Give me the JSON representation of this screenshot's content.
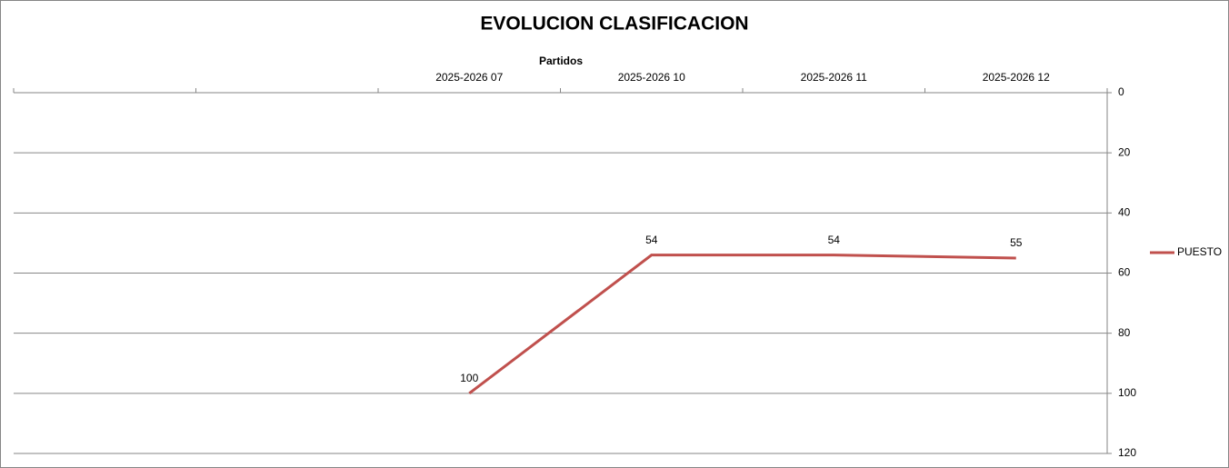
{
  "chart_data": {
    "type": "line",
    "title": "EVOLUCION CLASIFICACION",
    "x_label": "Partidos",
    "categories": [
      null,
      null,
      "2025-2026 07",
      "2025-2026 10",
      "2025-2026 11",
      "2025-2026 12"
    ],
    "series": [
      {
        "name": "PUESTO",
        "color": "#c0504d",
        "values": [
          null,
          null,
          100,
          54,
          54,
          55
        ]
      }
    ],
    "ylim": [
      0,
      120
    ],
    "yticks": [
      0,
      20,
      40,
      60,
      80,
      100,
      120
    ],
    "y_reversed": true,
    "y_axis_side": "right",
    "grid": true,
    "legend": "right",
    "data_labels": true
  }
}
